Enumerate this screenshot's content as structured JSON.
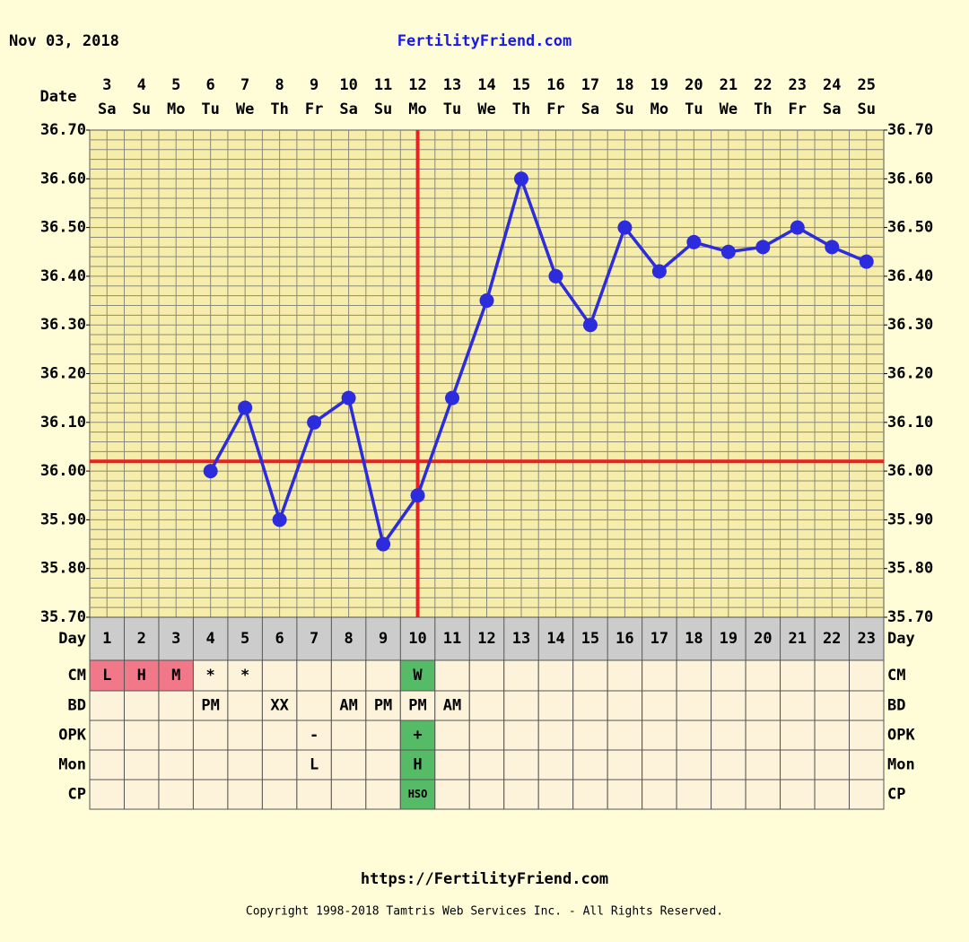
{
  "header": {
    "date": "Nov 03, 2018",
    "site": "FertilityFriend.com"
  },
  "footer": {
    "url": "https://FertilityFriend.com",
    "copyright": "Copyright 1998-2018 Tamtris Web Services Inc. - All Rights Reserved."
  },
  "chart_data": {
    "type": "line",
    "x_label": "Date",
    "day_label": "Day",
    "categories": [
      "1",
      "2",
      "3",
      "4",
      "5",
      "6",
      "7",
      "8",
      "9",
      "10",
      "11",
      "12",
      "13",
      "14",
      "15",
      "16",
      "17",
      "18",
      "19",
      "20",
      "21",
      "22",
      "23"
    ],
    "dates": [
      "3",
      "4",
      "5",
      "6",
      "7",
      "8",
      "9",
      "10",
      "11",
      "12",
      "13",
      "14",
      "15",
      "16",
      "17",
      "18",
      "19",
      "20",
      "21",
      "22",
      "23",
      "24",
      "25"
    ],
    "weekdays": [
      "Sa",
      "Su",
      "Mo",
      "Tu",
      "We",
      "Th",
      "Fr",
      "Sa",
      "Su",
      "Mo",
      "Tu",
      "We",
      "Th",
      "Fr",
      "Sa",
      "Su",
      "Mo",
      "Tu",
      "We",
      "Th",
      "Fr",
      "Sa",
      "Su"
    ],
    "values": [
      null,
      null,
      null,
      36.0,
      36.13,
      35.9,
      36.1,
      36.15,
      35.85,
      35.95,
      36.15,
      36.35,
      36.6,
      36.4,
      36.3,
      36.5,
      36.41,
      36.47,
      36.45,
      36.46,
      36.5,
      36.46,
      36.43
    ],
    "color": "#2c2cdc",
    "ylim": [
      35.7,
      36.7
    ],
    "yticks": [
      {
        "value": 35.7,
        "label": "35.70"
      },
      {
        "value": 35.8,
        "label": "35.80"
      },
      {
        "value": 35.9,
        "label": "35.90"
      },
      {
        "value": 36.0,
        "label": "36.00"
      },
      {
        "value": 36.1,
        "label": "36.10"
      },
      {
        "value": 36.2,
        "label": "36.20"
      },
      {
        "value": 36.3,
        "label": "36.30"
      },
      {
        "value": 36.4,
        "label": "36.40"
      },
      {
        "value": 36.5,
        "label": "36.50"
      },
      {
        "value": 36.6,
        "label": "36.60"
      },
      {
        "value": 36.7,
        "label": "36.70"
      }
    ],
    "grid": true,
    "coverline": 36.02,
    "ovulation_day": 10,
    "marker_line_color": "#e82222",
    "rows": [
      {
        "label": "CM",
        "cells": [
          "L",
          "H",
          "M",
          "*",
          "*",
          null,
          null,
          null,
          null,
          "W",
          null,
          null,
          null,
          null,
          null,
          null,
          null,
          null,
          null,
          null,
          null,
          null,
          null
        ],
        "colors": [
          "#f07888",
          "#f07888",
          "#f07888",
          null,
          null,
          null,
          null,
          null,
          null,
          "#55bb66",
          null,
          null,
          null,
          null,
          null,
          null,
          null,
          null,
          null,
          null,
          null,
          null,
          null
        ]
      },
      {
        "label": "BD",
        "cells": [
          null,
          null,
          null,
          "PM",
          null,
          "XX",
          null,
          "AM",
          "PM",
          "PM",
          "AM",
          null,
          null,
          null,
          null,
          null,
          null,
          null,
          null,
          null,
          null,
          null,
          null
        ],
        "colors": [
          null,
          null,
          null,
          null,
          null,
          null,
          null,
          null,
          null,
          null,
          null,
          null,
          null,
          null,
          null,
          null,
          null,
          null,
          null,
          null,
          null,
          null,
          null
        ]
      },
      {
        "label": "OPK",
        "cells": [
          null,
          null,
          null,
          null,
          null,
          null,
          "-",
          null,
          null,
          "+",
          null,
          null,
          null,
          null,
          null,
          null,
          null,
          null,
          null,
          null,
          null,
          null,
          null
        ],
        "colors": [
          null,
          null,
          null,
          null,
          null,
          null,
          null,
          null,
          null,
          "#55bb66",
          null,
          null,
          null,
          null,
          null,
          null,
          null,
          null,
          null,
          null,
          null,
          null,
          null
        ]
      },
      {
        "label": "Mon",
        "cells": [
          null,
          null,
          null,
          null,
          null,
          null,
          "L",
          null,
          null,
          "H",
          null,
          null,
          null,
          null,
          null,
          null,
          null,
          null,
          null,
          null,
          null,
          null,
          null
        ],
        "colors": [
          null,
          null,
          null,
          null,
          null,
          null,
          null,
          null,
          null,
          "#55bb66",
          null,
          null,
          null,
          null,
          null,
          null,
          null,
          null,
          null,
          null,
          null,
          null,
          null
        ]
      },
      {
        "label": "CP",
        "cells": [
          null,
          null,
          null,
          null,
          null,
          null,
          null,
          null,
          null,
          "HSO",
          null,
          null,
          null,
          null,
          null,
          null,
          null,
          null,
          null,
          null,
          null,
          null,
          null
        ],
        "colors": [
          null,
          null,
          null,
          null,
          null,
          null,
          null,
          null,
          null,
          "#55bb66",
          null,
          null,
          null,
          null,
          null,
          null,
          null,
          null,
          null,
          null,
          null,
          null,
          null
        ]
      }
    ]
  }
}
